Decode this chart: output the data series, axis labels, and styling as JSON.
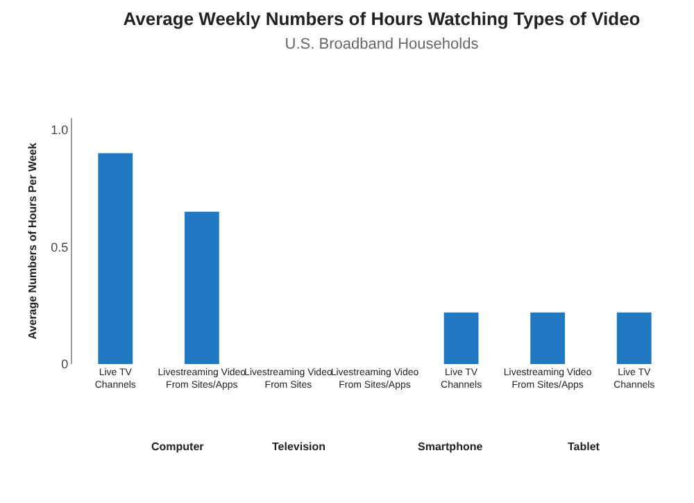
{
  "chart_data": {
    "type": "bar",
    "title": "Average Weekly Numbers of Hours Watching Types of Video",
    "subtitle": "U.S. Broadband Households",
    "ylabel": "Average Numbers of Hours Per Week",
    "categories": [
      "Live TV Channels",
      "Livestreaming Video From Sites/Apps",
      "Livestreaming Video From Sites",
      "Livestreaming Video From Sites/Apps",
      "Live TV Channels",
      "Livestreaming Video From Sites/Apps",
      "Live TV Channels"
    ],
    "values": [
      0.9,
      0.65,
      null,
      null,
      0.22,
      0.22,
      0.22
    ],
    "color": "#1f78c1",
    "ylim": [
      0,
      1.05
    ],
    "yticks": [
      0,
      0.5,
      {
        "value": 1,
        "label": "1.0"
      }
    ],
    "grid": false,
    "annotations": [
      "Computer",
      "Television",
      "Smartphone",
      "Tablet"
    ]
  }
}
